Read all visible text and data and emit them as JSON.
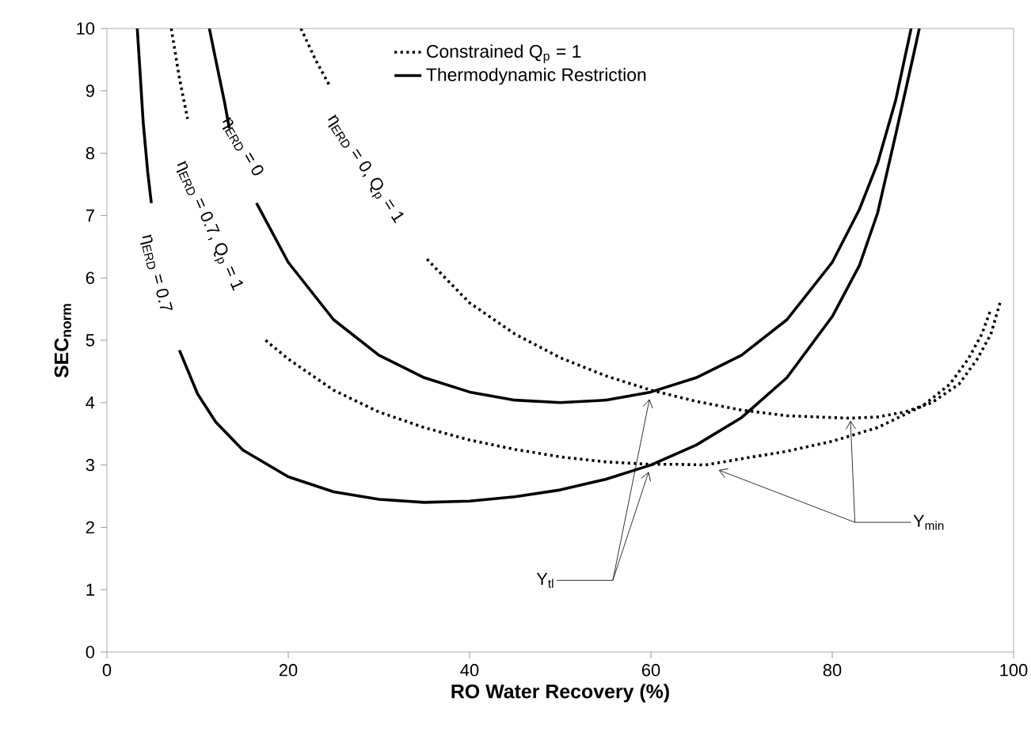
{
  "chart_data": {
    "type": "line",
    "xlabel": "RO Water Recovery (%)",
    "ylabel": "SEC$_{norm}$",
    "xlim": [
      0,
      100
    ],
    "ylim": [
      0,
      10
    ],
    "xticks": [
      0,
      20,
      40,
      60,
      80,
      100
    ],
    "yticks": [
      0,
      1,
      2,
      3,
      4,
      5,
      6,
      7,
      8,
      9,
      10
    ],
    "legend": "top",
    "marker": "none",
    "grid": false,
    "series": [
      {
        "name": "Constrained Q$_{p}$ = 1",
        "color": "#000000",
        "line_style": "dotted",
        "x": [
          21.4,
          23,
          24.5,
          30,
          35.3,
          40,
          45,
          50,
          55,
          60,
          65,
          70,
          75,
          80,
          82,
          85,
          88,
          91,
          94,
          96,
          97.5,
          98.5
        ],
        "values": [
          10,
          9.5,
          9.1,
          null,
          6.3,
          5.6,
          5.1,
          4.72,
          4.43,
          4.2,
          4.02,
          3.88,
          3.79,
          3.76,
          3.75,
          3.77,
          3.85,
          4.0,
          4.3,
          4.7,
          5.1,
          5.6
        ]
      },
      {
        "color": "#000000",
        "line_style": "dotted",
        "x": [
          7.1,
          8,
          8.9,
          13,
          17.5,
          20,
          25,
          30,
          35,
          40,
          45,
          50,
          55,
          60,
          63,
          66,
          70,
          75,
          80,
          85,
          90,
          93,
          95,
          96.5,
          97.5
        ],
        "values": [
          10,
          9.2,
          8.55,
          null,
          5.0,
          4.7,
          4.2,
          3.85,
          3.6,
          3.4,
          3.25,
          3.13,
          3.05,
          3.01,
          3.01,
          3.0,
          3.1,
          3.22,
          3.38,
          3.6,
          3.95,
          4.3,
          4.7,
          5.1,
          5.5
        ]
      },
      {
        "name": "Thermodynamic Restriction",
        "color": "#000000",
        "line_style": "solid",
        "x": [
          11.3,
          12,
          13,
          13.5,
          15,
          16.5,
          20,
          25,
          30,
          35,
          40,
          45,
          50,
          55,
          60,
          65,
          70,
          75,
          80,
          83,
          85,
          87,
          88.7
        ],
        "values": [
          10,
          9.5,
          8.8,
          8.4,
          null,
          7.2,
          6.25,
          5.33,
          4.76,
          4.4,
          4.17,
          4.04,
          4.0,
          4.04,
          4.17,
          4.4,
          4.76,
          5.33,
          6.25,
          7.1,
          7.84,
          8.85,
          10
        ]
      },
      {
        "color": "#000000",
        "line_style": "solid",
        "x": [
          3.35,
          3.7,
          4,
          4.5,
          4.9,
          6.5,
          8,
          10,
          12,
          15,
          20,
          25,
          30,
          35,
          40,
          45,
          50,
          55,
          60,
          65,
          70,
          75,
          80,
          83,
          85,
          87,
          89,
          89.6
        ],
        "values": [
          10,
          9.2,
          8.5,
          7.7,
          7.2,
          null,
          4.84,
          4.14,
          3.69,
          3.24,
          2.81,
          2.57,
          2.45,
          2.4,
          2.42,
          2.49,
          2.6,
          2.77,
          3.0,
          3.32,
          3.76,
          4.4,
          5.38,
          6.2,
          7.04,
          8.3,
          9.6,
          10
        ]
      }
    ],
    "annotations": [
      "η$_{ERD}$ = 0.7",
      "η$_{ERD}$ = 0.7, Q$_{p}$ = 1",
      "η$_{ERD}$ = 0",
      "η$_{ERD}$ = 0, Q$_{p}$ = 1",
      "Y$_{tl}$",
      "Y$_{min}$"
    ]
  }
}
